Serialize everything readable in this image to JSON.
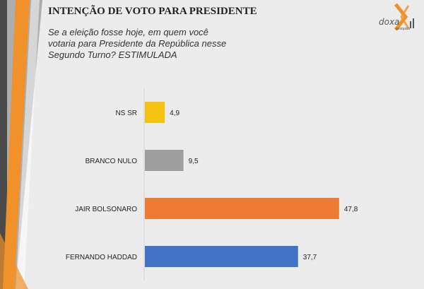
{
  "header": {
    "title": "INTENÇÃO DE VOTO PARA PRESIDENTE",
    "subtitle": "Se a eleição fosse hoje, em quem você votaria para Presidente da República nesse Segundo Turno? ESTIMULADA"
  },
  "logo": {
    "text": "doxa",
    "sub": "pesquisa"
  },
  "colors": {
    "accent_orange": "#f0912a",
    "accent_gray": "#5a5a5a"
  },
  "chart_data": {
    "type": "bar",
    "orientation": "horizontal",
    "categories": [
      "NS SR",
      "BRANCO NULO",
      "JAIR BOLSONARO",
      "FERNANDO HADDAD"
    ],
    "values": [
      4.9,
      9.5,
      47.8,
      37.7
    ],
    "value_labels": [
      "4,9",
      "9,5",
      "47,8",
      "37,7"
    ],
    "colors": [
      "#f5c20f",
      "#9e9e9e",
      "#ee7b31",
      "#4472c4"
    ],
    "xlim": [
      0,
      60
    ],
    "grid": false,
    "legend": "none"
  }
}
